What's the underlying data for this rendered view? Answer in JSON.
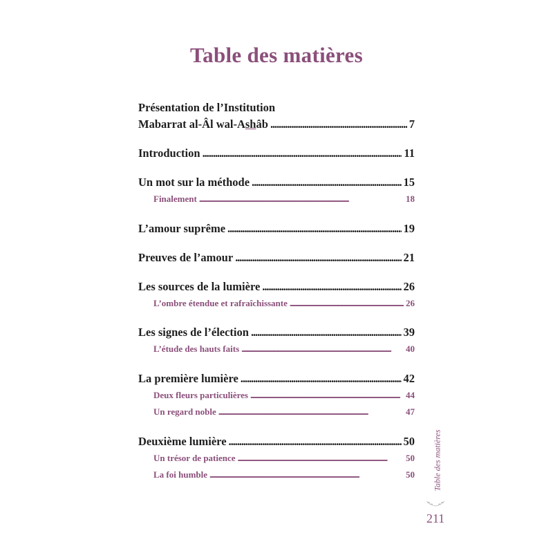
{
  "title": "Table des matières",
  "running_head": "Table des matières",
  "page_number": "211",
  "accent_color": "#8b4f7a",
  "entries": [
    {
      "pre": "Présentation de l’Institution",
      "label_parts": [
        "Mabarrat al-Âl wal-A",
        "sh",
        "âb"
      ],
      "page": "7",
      "subs": []
    },
    {
      "label": "Introduction",
      "page": "11",
      "subs": []
    },
    {
      "label": "Un mot sur la méthode",
      "page": "15",
      "subs": [
        {
          "label": "Finalement",
          "page": "18"
        }
      ]
    },
    {
      "label": "L’amour suprême",
      "page": "19",
      "subs": []
    },
    {
      "label": "Preuves de l’amour",
      "page": "21",
      "subs": []
    },
    {
      "label": "Les sources de la lumière",
      "page": "26",
      "subs": [
        {
          "label": "L’ombre étendue et rafraîchissante",
          "page": "26"
        }
      ]
    },
    {
      "label": "Les signes de l’élection",
      "page": "39",
      "subs": [
        {
          "label": "L’étude des hauts faits",
          "page": "40"
        }
      ]
    },
    {
      "label": "La première lumière",
      "page": "42",
      "subs": [
        {
          "label": "Deux fleurs particulières",
          "page": "44"
        },
        {
          "label": "Un regard noble",
          "page": "47"
        }
      ]
    },
    {
      "label": "Deuxième lumière",
      "page": "50",
      "subs": [
        {
          "label": "Un trésor de patience",
          "page": "50"
        },
        {
          "label": "La foi humble",
          "page": "50"
        }
      ]
    }
  ]
}
